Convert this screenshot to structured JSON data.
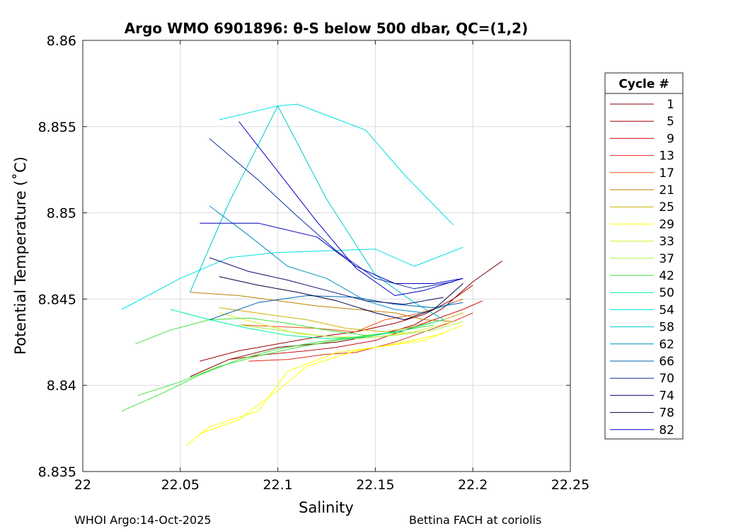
{
  "chart_data": {
    "type": "line",
    "title": "Argo WMO 6901896: θ-S below 500 dbar,  QC=(1,2)",
    "xlabel": "Salinity",
    "ylabel": "Potential Temperature (˚C)",
    "xlim": [
      22,
      22.25
    ],
    "ylim": [
      8.835,
      8.86
    ],
    "xticks": [
      "22",
      "22.05",
      "22.1",
      "22.15",
      "22.2",
      "22.25"
    ],
    "yticks": [
      "8.835",
      "8.84",
      "8.845",
      "8.85",
      "8.855",
      "8.86"
    ],
    "grid": true,
    "legend": {
      "title": "Cycle #",
      "placement": "outside-right",
      "entries": [
        {
          "label": "1",
          "color": "#800000"
        },
        {
          "label": "5",
          "color": "#a00000"
        },
        {
          "label": "9",
          "color": "#c41010"
        },
        {
          "label": "13",
          "color": "#e02818"
        },
        {
          "label": "17",
          "color": "#f05010"
        },
        {
          "label": "21",
          "color": "#c08000"
        },
        {
          "label": "25",
          "color": "#d0b000"
        },
        {
          "label": "29",
          "color": "#ffff00"
        },
        {
          "label": "33",
          "color": "#d8ee30"
        },
        {
          "label": "37",
          "color": "#a8ee40"
        },
        {
          "label": "42",
          "color": "#40e040"
        },
        {
          "label": "50",
          "color": "#00f0a0"
        },
        {
          "label": "54",
          "color": "#00e0e0"
        },
        {
          "label": "58",
          "color": "#00c8c8"
        },
        {
          "label": "62",
          "color": "#0090c0"
        },
        {
          "label": "66",
          "color": "#0060b0"
        },
        {
          "label": "70",
          "color": "#1030a0"
        },
        {
          "label": "74",
          "color": "#101070"
        },
        {
          "label": "78",
          "color": "#000040"
        },
        {
          "label": "82",
          "color": "#0000c0"
        }
      ]
    },
    "series": [
      {
        "color": "#800000",
        "x": [
          22.055,
          22.075,
          22.1,
          22.13,
          22.155,
          22.17,
          22.185,
          22.2,
          22.215
        ],
        "y": [
          8.8405,
          8.8415,
          8.8422,
          8.8425,
          8.843,
          8.8435,
          8.8445,
          8.846,
          8.8472
        ]
      },
      {
        "color": "#a00000",
        "x": [
          22.06,
          22.08,
          22.1,
          22.12,
          22.14,
          22.16,
          22.175,
          22.19,
          22.2
        ],
        "y": [
          8.8414,
          8.842,
          8.8424,
          8.8428,
          8.8431,
          8.8436,
          8.8441,
          8.845,
          8.8458
        ]
      },
      {
        "color": "#c41010",
        "x": [
          22.075,
          22.095,
          22.115,
          22.13,
          22.15,
          22.165,
          22.18,
          22.195,
          22.205
        ],
        "y": [
          8.8415,
          8.8418,
          8.842,
          8.8422,
          8.8426,
          8.8432,
          8.8438,
          8.8444,
          8.8449
        ]
      },
      {
        "color": "#e02818",
        "x": [
          22.085,
          22.105,
          22.125,
          22.14,
          22.16,
          22.175,
          22.19,
          22.2
        ],
        "y": [
          8.8414,
          8.8415,
          8.8418,
          8.8419,
          8.8425,
          8.8431,
          8.8437,
          8.8442
        ]
      },
      {
        "color": "#f05010",
        "x": [
          22.08,
          22.1,
          22.12,
          22.14,
          22.155,
          22.17,
          22.185,
          22.195
        ],
        "y": [
          8.8435,
          8.8434,
          8.8433,
          8.8431,
          8.8438,
          8.8441,
          8.8446,
          8.845
        ]
      },
      {
        "color": "#c08000",
        "x": [
          22.055,
          22.08,
          22.1,
          22.12,
          22.14,
          22.16,
          22.175,
          22.19
        ],
        "y": [
          8.8454,
          8.8452,
          8.8449,
          8.8446,
          8.8444,
          8.8442,
          8.8438,
          8.8437
        ]
      },
      {
        "color": "#d0b000",
        "x": [
          22.07,
          22.095,
          22.115,
          22.135,
          22.155,
          22.17,
          22.185,
          22.195
        ],
        "y": [
          8.8445,
          8.8441,
          8.8438,
          8.8433,
          8.8431,
          8.8434,
          8.8438,
          8.8442
        ]
      },
      {
        "color": "#ffff00",
        "x": [
          22.053,
          22.065,
          22.09,
          22.105,
          22.13,
          22.15,
          22.175,
          22.195
        ],
        "y": [
          8.8365,
          8.8376,
          8.8385,
          8.8408,
          8.8419,
          8.8422,
          8.8426,
          8.8435
        ]
      },
      {
        "color": "#ffff00",
        "x": [
          22.06,
          22.08,
          22.1,
          22.115,
          22.14,
          22.165,
          22.185
        ],
        "y": [
          8.8372,
          8.838,
          8.8397,
          8.8411,
          8.842,
          8.8425,
          8.843
        ]
      },
      {
        "color": "#d8ee30",
        "x": [
          22.07,
          22.09,
          22.11,
          22.13,
          22.15,
          22.17,
          22.19
        ],
        "y": [
          8.8442,
          8.8436,
          8.843,
          8.8428,
          8.8428,
          8.8431,
          8.8437
        ]
      },
      {
        "color": "#a8ee40",
        "x": [
          22.08,
          22.1,
          22.12,
          22.14,
          22.16,
          22.18,
          22.195
        ],
        "y": [
          8.8435,
          8.8432,
          8.8429,
          8.8427,
          8.8429,
          8.8432,
          8.8437
        ]
      },
      {
        "color": "#40e040",
        "x": [
          22.02,
          22.04,
          22.06,
          22.08,
          22.1,
          22.12,
          22.14,
          22.16,
          22.18
        ],
        "y": [
          8.8385,
          8.8395,
          8.8406,
          8.8415,
          8.8421,
          8.8425,
          8.8428,
          8.8431,
          8.8435
        ]
      },
      {
        "color": "#40e040",
        "x": [
          22.027,
          22.045,
          22.065,
          22.085,
          22.105,
          22.125,
          22.145,
          22.165
        ],
        "y": [
          8.8424,
          8.8432,
          8.8438,
          8.8439,
          8.8436,
          8.8432,
          8.8429,
          8.8431
        ]
      },
      {
        "color": "#40e040",
        "x": [
          22.028,
          22.05,
          22.07,
          22.09,
          22.11,
          22.13,
          22.15,
          22.17
        ],
        "y": [
          8.8394,
          8.8402,
          8.8411,
          8.8417,
          8.8422,
          8.8426,
          8.8429,
          8.8433
        ]
      },
      {
        "color": "#00f0a0",
        "x": [
          22.045,
          22.065,
          22.085,
          22.105,
          22.125,
          22.145,
          22.165,
          22.185
        ],
        "y": [
          8.8444,
          8.8438,
          8.8433,
          8.8429,
          8.8427,
          8.8428,
          8.8432,
          8.8438
        ]
      },
      {
        "color": "#00e0e0",
        "x": [
          22.07,
          22.1,
          22.11,
          22.145,
          22.165,
          22.19
        ],
        "y": [
          8.8554,
          8.8562,
          8.8563,
          8.8548,
          8.8522,
          8.8493
        ]
      },
      {
        "color": "#00e0e0",
        "x": [
          22.02,
          22.05,
          22.075,
          22.1,
          22.125,
          22.15,
          22.17,
          22.195
        ],
        "y": [
          8.8444,
          8.8462,
          8.8474,
          8.8477,
          8.8478,
          8.8479,
          8.8469,
          8.848
        ]
      },
      {
        "color": "#00c8c8",
        "x": [
          22.055,
          22.075,
          22.1,
          22.125,
          22.15,
          22.17,
          22.185
        ],
        "y": [
          8.8454,
          8.8506,
          8.8562,
          8.8508,
          8.8464,
          8.8448,
          8.8438
        ]
      },
      {
        "color": "#0090c0",
        "x": [
          22.065,
          22.085,
          22.105,
          22.125,
          22.145,
          22.16,
          22.175,
          22.19
        ],
        "y": [
          8.8504,
          8.8487,
          8.8469,
          8.8462,
          8.8449,
          8.8444,
          8.8442,
          8.8448
        ]
      },
      {
        "color": "#0060b0",
        "x": [
          22.065,
          22.09,
          22.115,
          22.14,
          22.16,
          22.18,
          22.195
        ],
        "y": [
          8.8438,
          8.8448,
          8.8452,
          8.8451,
          8.8447,
          8.8445,
          8.8448
        ]
      },
      {
        "color": "#1030a0",
        "x": [
          22.065,
          22.09,
          22.11,
          22.13,
          22.15,
          22.17,
          22.19
        ],
        "y": [
          8.8543,
          8.8519,
          8.8498,
          8.8478,
          8.8462,
          8.8456,
          8.846
        ]
      },
      {
        "color": "#101070",
        "x": [
          22.065,
          22.085,
          22.105,
          22.125,
          22.145,
          22.165,
          22.185
        ],
        "y": [
          8.8474,
          8.8466,
          8.8461,
          8.8455,
          8.8449,
          8.8447,
          8.8451
        ]
      },
      {
        "color": "#000040",
        "x": [
          22.07,
          22.09,
          22.11,
          22.13,
          22.15,
          22.165,
          22.18,
          22.195
        ],
        "y": [
          8.8463,
          8.8458,
          8.8454,
          8.8449,
          8.8442,
          8.8438,
          8.8444,
          8.8459
        ]
      },
      {
        "color": "#0000c0",
        "x": [
          22.08,
          22.1,
          22.12,
          22.14,
          22.16,
          22.175,
          22.195
        ],
        "y": [
          8.8553,
          8.8524,
          8.8495,
          8.8468,
          8.8452,
          8.8455,
          8.8462
        ]
      },
      {
        "color": "#0000c0",
        "x": [
          22.06,
          22.09,
          22.12,
          22.14,
          22.16,
          22.18,
          22.195
        ],
        "y": [
          8.8494,
          8.8494,
          8.8486,
          8.8469,
          8.8459,
          8.8459,
          8.8462
        ]
      }
    ]
  },
  "footer": {
    "left": "WHOI Argo:14-Oct-2025",
    "right": "Bettina FACH at coriolis"
  }
}
